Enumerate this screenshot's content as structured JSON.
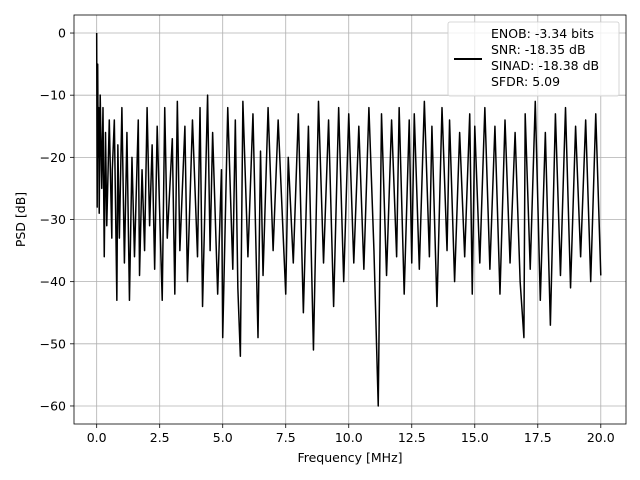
{
  "chart_data": {
    "type": "line",
    "xlabel": "Frequency [MHz]",
    "ylabel": "PSD [dB]",
    "xlim": [
      -0.9,
      21.0
    ],
    "ylim": [
      -62.9,
      2.9
    ],
    "xticks": [
      0.0,
      2.5,
      5.0,
      7.5,
      10.0,
      12.5,
      15.0,
      17.5,
      20.0
    ],
    "xtick_labels": [
      "0.0",
      "2.5",
      "5.0",
      "7.5",
      "10.0",
      "12.5",
      "15.0",
      "17.5",
      "20.0"
    ],
    "yticks": [
      0,
      -10,
      -20,
      -30,
      -40,
      -50,
      -60
    ],
    "ytick_labels": [
      "0",
      "−10",
      "−20",
      "−30",
      "−40",
      "−50",
      "−60"
    ],
    "grid": true,
    "legend_position": "top-right",
    "series_color": "#000000",
    "legend": {
      "lines": [
        "ENOB: -3.34 bits",
        "SNR: -18.35 dB",
        "SINAD: -18.38 dB",
        "SFDR: 5.09"
      ]
    },
    "series": [
      {
        "x": [
          0.0,
          0.02,
          0.04,
          0.06,
          0.08,
          0.1,
          0.14,
          0.2,
          0.25,
          0.3,
          0.35,
          0.4,
          0.5,
          0.6,
          0.62,
          0.7,
          0.8,
          0.84,
          0.9,
          1.0,
          1.1,
          1.2,
          1.3,
          1.4,
          1.5,
          1.65,
          1.7,
          1.8,
          1.9,
          2.0,
          2.1,
          2.2,
          2.3,
          2.4,
          2.6,
          2.7,
          2.8,
          3.0,
          3.1,
          3.2,
          3.3,
          3.5,
          3.6,
          3.8,
          4.0,
          4.1,
          4.2,
          4.4,
          4.5,
          4.6,
          4.8,
          4.95,
          5.0,
          5.2,
          5.4,
          5.5,
          5.6,
          5.7,
          5.8,
          6.0,
          6.2,
          6.4,
          6.5,
          6.6,
          6.8,
          7.0,
          7.2,
          7.5,
          7.6,
          7.8,
          8.0,
          8.2,
          8.4,
          8.6,
          8.8,
          9.0,
          9.2,
          9.4,
          9.6,
          9.8,
          10.0,
          10.2,
          10.4,
          10.6,
          10.8,
          11.0,
          11.17,
          11.3,
          11.5,
          11.7,
          11.9,
          12.0,
          12.2,
          12.4,
          12.5,
          12.6,
          12.8,
          13.0,
          13.2,
          13.3,
          13.5,
          13.7,
          13.9,
          14.0,
          14.2,
          14.4,
          14.6,
          14.8,
          14.9,
          15.0,
          15.2,
          15.4,
          15.6,
          15.8,
          16.0,
          16.2,
          16.4,
          16.6,
          16.8,
          16.95,
          17.0,
          17.2,
          17.4,
          17.6,
          17.8,
          18.0,
          18.2,
          18.4,
          18.6,
          18.8,
          19.0,
          19.2,
          19.4,
          19.6,
          19.8,
          20.0
        ],
        "y": [
          0,
          -28,
          -5,
          -20,
          -12,
          -29,
          -10,
          -25,
          -12,
          -36,
          -16,
          -31,
          -14,
          -33,
          -22,
          -14,
          -43,
          -18,
          -33,
          -12,
          -37,
          -16,
          -43,
          -20,
          -36,
          -14,
          -39,
          -22,
          -35,
          -12,
          -31,
          -18,
          -38,
          -15,
          -43,
          -12,
          -33,
          -17,
          -42,
          -11,
          -35,
          -15,
          -40,
          -14,
          -36,
          -12,
          -44,
          -10,
          -35,
          -16,
          -42,
          -22,
          -49,
          -12,
          -38,
          -14,
          -41,
          -52,
          -11,
          -36,
          -13,
          -49,
          -19,
          -39,
          -12,
          -35,
          -14,
          -42,
          -20,
          -37,
          -13,
          -45,
          -15,
          -51,
          -11,
          -37,
          -14,
          -44,
          -12,
          -40,
          -13,
          -37,
          -15,
          -38,
          -12,
          -35,
          -60,
          -13,
          -39,
          -14,
          -36,
          -12,
          -42,
          -14,
          -37,
          -13,
          -38,
          -11,
          -36,
          -15,
          -44,
          -12,
          -35,
          -14,
          -40,
          -16,
          -36,
          -13,
          -42,
          -15,
          -37,
          -12,
          -38,
          -15,
          -42,
          -14,
          -37,
          -16,
          -40,
          -49,
          -13,
          -38,
          -11,
          -43,
          -16,
          -47,
          -13,
          -39,
          -12,
          -41,
          -15,
          -36,
          -14,
          -40,
          -13,
          -39
        ]
      }
    ]
  }
}
